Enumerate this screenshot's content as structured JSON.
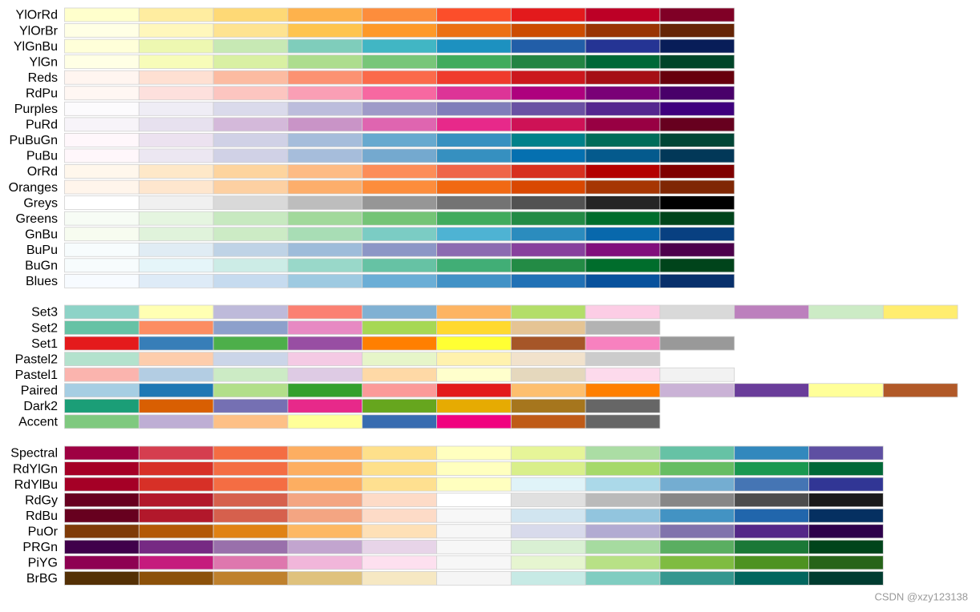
{
  "groups": [
    {
      "palettes": [
        {
          "name": "YlOrRd",
          "colors": [
            "#FFFFCC",
            "#FFEDA0",
            "#FED976",
            "#FEB24C",
            "#FD8D3C",
            "#FC4E2A",
            "#E31A1C",
            "#BD0026",
            "#800026"
          ]
        },
        {
          "name": "YlOrBr",
          "colors": [
            "#FFFFE5",
            "#FFF7BC",
            "#FEE391",
            "#FEC44F",
            "#FE9929",
            "#EC7014",
            "#CC4C02",
            "#993404",
            "#662506"
          ]
        },
        {
          "name": "YlGnBu",
          "colors": [
            "#FFFFD9",
            "#EDF8B1",
            "#C7E9B4",
            "#7FCDBB",
            "#41B6C4",
            "#1D91C0",
            "#225EA8",
            "#253494",
            "#081D58"
          ]
        },
        {
          "name": "YlGn",
          "colors": [
            "#FFFFE5",
            "#F7FCB9",
            "#D9F0A3",
            "#ADDD8E",
            "#78C679",
            "#41AB5D",
            "#238443",
            "#006837",
            "#004529"
          ]
        },
        {
          "name": "Reds",
          "colors": [
            "#FFF5F0",
            "#FEE0D2",
            "#FCBBA1",
            "#FC9272",
            "#FB6A4A",
            "#EF3B2C",
            "#CB181D",
            "#A50F15",
            "#67000D"
          ]
        },
        {
          "name": "RdPu",
          "colors": [
            "#FFF7F3",
            "#FDE0DD",
            "#FCC5C0",
            "#FA9FB5",
            "#F768A1",
            "#DD3497",
            "#AE017E",
            "#7A0177",
            "#49006A"
          ]
        },
        {
          "name": "Purples",
          "colors": [
            "#FCFBFD",
            "#EFEDF5",
            "#DADAEB",
            "#BCBDDC",
            "#9E9AC8",
            "#807DBA",
            "#6A51A3",
            "#54278F",
            "#3F007D"
          ]
        },
        {
          "name": "PuRd",
          "colors": [
            "#F7F4F9",
            "#E7E1EF",
            "#D4B9DA",
            "#C994C7",
            "#DF65B0",
            "#E7298A",
            "#CE1256",
            "#980043",
            "#67001F"
          ]
        },
        {
          "name": "PuBuGn",
          "colors": [
            "#FFF7FB",
            "#ECE2F0",
            "#D0D1E6",
            "#A6BDDB",
            "#67A9CF",
            "#3690C0",
            "#02818A",
            "#016C59",
            "#014636"
          ]
        },
        {
          "name": "PuBu",
          "colors": [
            "#FFF7FB",
            "#ECE7F2",
            "#D0D1E6",
            "#A6BDDB",
            "#74A9CF",
            "#3690C0",
            "#0570B0",
            "#045A8D",
            "#023858"
          ]
        },
        {
          "name": "OrRd",
          "colors": [
            "#FFF7EC",
            "#FEE8C8",
            "#FDD49E",
            "#FDBB84",
            "#FC8D59",
            "#EF6548",
            "#D7301F",
            "#B30000",
            "#7F0000"
          ]
        },
        {
          "name": "Oranges",
          "colors": [
            "#FFF5EB",
            "#FEE6CE",
            "#FDD0A2",
            "#FDAE6B",
            "#FD8D3C",
            "#F16913",
            "#D94801",
            "#A63603",
            "#7F2704"
          ]
        },
        {
          "name": "Greys",
          "colors": [
            "#FFFFFF",
            "#F0F0F0",
            "#D9D9D9",
            "#BDBDBD",
            "#969696",
            "#737373",
            "#525252",
            "#252525",
            "#000000"
          ]
        },
        {
          "name": "Greens",
          "colors": [
            "#F7FCF5",
            "#E5F5E0",
            "#C7E9C0",
            "#A1D99B",
            "#74C476",
            "#41AB5D",
            "#238B45",
            "#006D2C",
            "#00441B"
          ]
        },
        {
          "name": "GnBu",
          "colors": [
            "#F7FCF0",
            "#E0F3DB",
            "#CCEBC5",
            "#A8DDB5",
            "#7BCCC4",
            "#4EB3D3",
            "#2B8CBE",
            "#0868AC",
            "#084081"
          ]
        },
        {
          "name": "BuPu",
          "colors": [
            "#F7FCFD",
            "#E0ECF4",
            "#BFD3E6",
            "#9EBCDA",
            "#8C96C6",
            "#8C6BB1",
            "#88419D",
            "#810F7C",
            "#4D004B"
          ]
        },
        {
          "name": "BuGn",
          "colors": [
            "#F7FCFD",
            "#E5F5F9",
            "#CCECE6",
            "#99D8C9",
            "#66C2A4",
            "#41AE76",
            "#238B45",
            "#006D2C",
            "#00441B"
          ]
        },
        {
          "name": "Blues",
          "colors": [
            "#F7FBFF",
            "#DEEBF7",
            "#C6DBEF",
            "#9ECAE1",
            "#6BAED6",
            "#4292C6",
            "#2171B5",
            "#08519C",
            "#08306B"
          ]
        }
      ]
    },
    {
      "palettes": [
        {
          "name": "Set3",
          "colors": [
            "#8DD3C7",
            "#FFFFB3",
            "#BEBADA",
            "#FB8072",
            "#80B1D3",
            "#FDB462",
            "#B3DE69",
            "#FCCDE5",
            "#D9D9D9",
            "#BC80BD",
            "#CCEBC5",
            "#FFED6F"
          ]
        },
        {
          "name": "Set2",
          "colors": [
            "#66C2A5",
            "#FC8D62",
            "#8DA0CB",
            "#E78AC3",
            "#A6D854",
            "#FFD92F",
            "#E5C494",
            "#B3B3B3"
          ]
        },
        {
          "name": "Set1",
          "colors": [
            "#E41A1C",
            "#377EB8",
            "#4DAF4A",
            "#984EA3",
            "#FF7F00",
            "#FFFF33",
            "#A65628",
            "#F781BF",
            "#999999"
          ]
        },
        {
          "name": "Pastel2",
          "colors": [
            "#B3E2CD",
            "#FDCDAC",
            "#CBD5E8",
            "#F4CAE4",
            "#E6F5C9",
            "#FFF2AE",
            "#F1E2CC",
            "#CCCCCC"
          ]
        },
        {
          "name": "Pastel1",
          "colors": [
            "#FBB4AE",
            "#B3CDE3",
            "#CCEBC5",
            "#DECBE4",
            "#FED9A6",
            "#FFFFCC",
            "#E5D8BD",
            "#FDDAEC",
            "#F2F2F2"
          ]
        },
        {
          "name": "Paired",
          "colors": [
            "#A6CEE3",
            "#1F78B4",
            "#B2DF8A",
            "#33A02C",
            "#FB9A99",
            "#E31A1C",
            "#FDBF6F",
            "#FF7F00",
            "#CAB2D6",
            "#6A3D9A",
            "#FFFF99",
            "#B15928"
          ]
        },
        {
          "name": "Dark2",
          "colors": [
            "#1B9E77",
            "#D95F02",
            "#7570B3",
            "#E7298A",
            "#66A61E",
            "#E6AB02",
            "#A6761D",
            "#666666"
          ]
        },
        {
          "name": "Accent",
          "colors": [
            "#7FC97F",
            "#BEAED4",
            "#FDC086",
            "#FFFF99",
            "#386CB0",
            "#F0027F",
            "#BF5B17",
            "#666666"
          ]
        }
      ]
    },
    {
      "palettes": [
        {
          "name": "Spectral",
          "colors": [
            "#9E0142",
            "#D53E4F",
            "#F46D43",
            "#FDAE61",
            "#FEE08B",
            "#FFFFBF",
            "#E6F598",
            "#ABDDA4",
            "#66C2A5",
            "#3288BD",
            "#5E4FA2"
          ]
        },
        {
          "name": "RdYlGn",
          "colors": [
            "#A50026",
            "#D73027",
            "#F46D43",
            "#FDAE61",
            "#FEE08B",
            "#FFFFBF",
            "#D9EF8B",
            "#A6D96A",
            "#66BD63",
            "#1A9850",
            "#006837"
          ]
        },
        {
          "name": "RdYlBu",
          "colors": [
            "#A50026",
            "#D73027",
            "#F46D43",
            "#FDAE61",
            "#FEE090",
            "#FFFFBF",
            "#E0F3F8",
            "#ABD9E9",
            "#74ADD1",
            "#4575B4",
            "#313695"
          ]
        },
        {
          "name": "RdGy",
          "colors": [
            "#67001F",
            "#B2182B",
            "#D6604D",
            "#F4A582",
            "#FDDBC7",
            "#FFFFFF",
            "#E0E0E0",
            "#BABABA",
            "#878787",
            "#4D4D4D",
            "#1A1A1A"
          ]
        },
        {
          "name": "RdBu",
          "colors": [
            "#67001F",
            "#B2182B",
            "#D6604D",
            "#F4A582",
            "#FDDBC7",
            "#F7F7F7",
            "#D1E5F0",
            "#92C5DE",
            "#4393C3",
            "#2166AC",
            "#053061"
          ]
        },
        {
          "name": "PuOr",
          "colors": [
            "#7F3B08",
            "#B35806",
            "#E08214",
            "#FDB863",
            "#FEE0B6",
            "#F7F7F7",
            "#D8DAEB",
            "#B2ABD2",
            "#8073AC",
            "#542788",
            "#2D004B"
          ]
        },
        {
          "name": "PRGn",
          "colors": [
            "#40004B",
            "#762A83",
            "#9970AB",
            "#C2A5CF",
            "#E7D4E8",
            "#F7F7F7",
            "#D9F0D3",
            "#A6DBA0",
            "#5AAE61",
            "#1B7837",
            "#00441B"
          ]
        },
        {
          "name": "PiYG",
          "colors": [
            "#8E0152",
            "#C51B7D",
            "#DE77AE",
            "#F1B6DA",
            "#FDE0EF",
            "#F7F7F7",
            "#E6F5D0",
            "#B8E186",
            "#7FBC41",
            "#4D9221",
            "#276419"
          ]
        },
        {
          "name": "BrBG",
          "colors": [
            "#543005",
            "#8C510A",
            "#BF812D",
            "#DFC27D",
            "#F6E8C3",
            "#F5F5F5",
            "#C7EAE5",
            "#80CDC1",
            "#35978F",
            "#01665E",
            "#003C30"
          ]
        }
      ]
    }
  ],
  "watermark": "CSDN @xzy123138"
}
